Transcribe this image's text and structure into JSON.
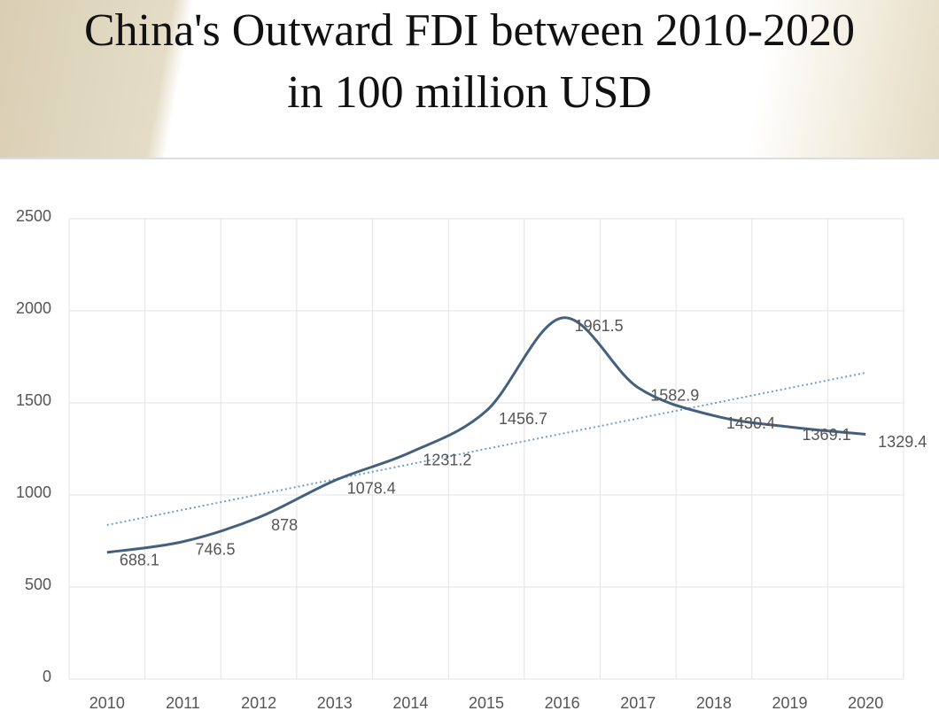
{
  "chart_data": {
    "type": "line",
    "title": "China's Outward FDI between 2010-2020 in 100 million USD",
    "categories": [
      "2010",
      "2011",
      "2012",
      "2013",
      "2014",
      "2015",
      "2016",
      "2017",
      "2018",
      "2019",
      "2020"
    ],
    "series": [
      {
        "color": "#44607d",
        "values": [
          688.1,
          746.5,
          878,
          1078.4,
          1231.2,
          1456.7,
          1961.5,
          1582.9,
          1430.4,
          1369.1,
          1329.4
        ]
      }
    ],
    "ylim": [
      0,
      2500
    ],
    "yticks": [
      0,
      500,
      1000,
      1500,
      2000,
      2500
    ],
    "grid": true,
    "smooth": true,
    "trendline": {
      "type": "linear",
      "color": "#6d9fcf"
    }
  }
}
